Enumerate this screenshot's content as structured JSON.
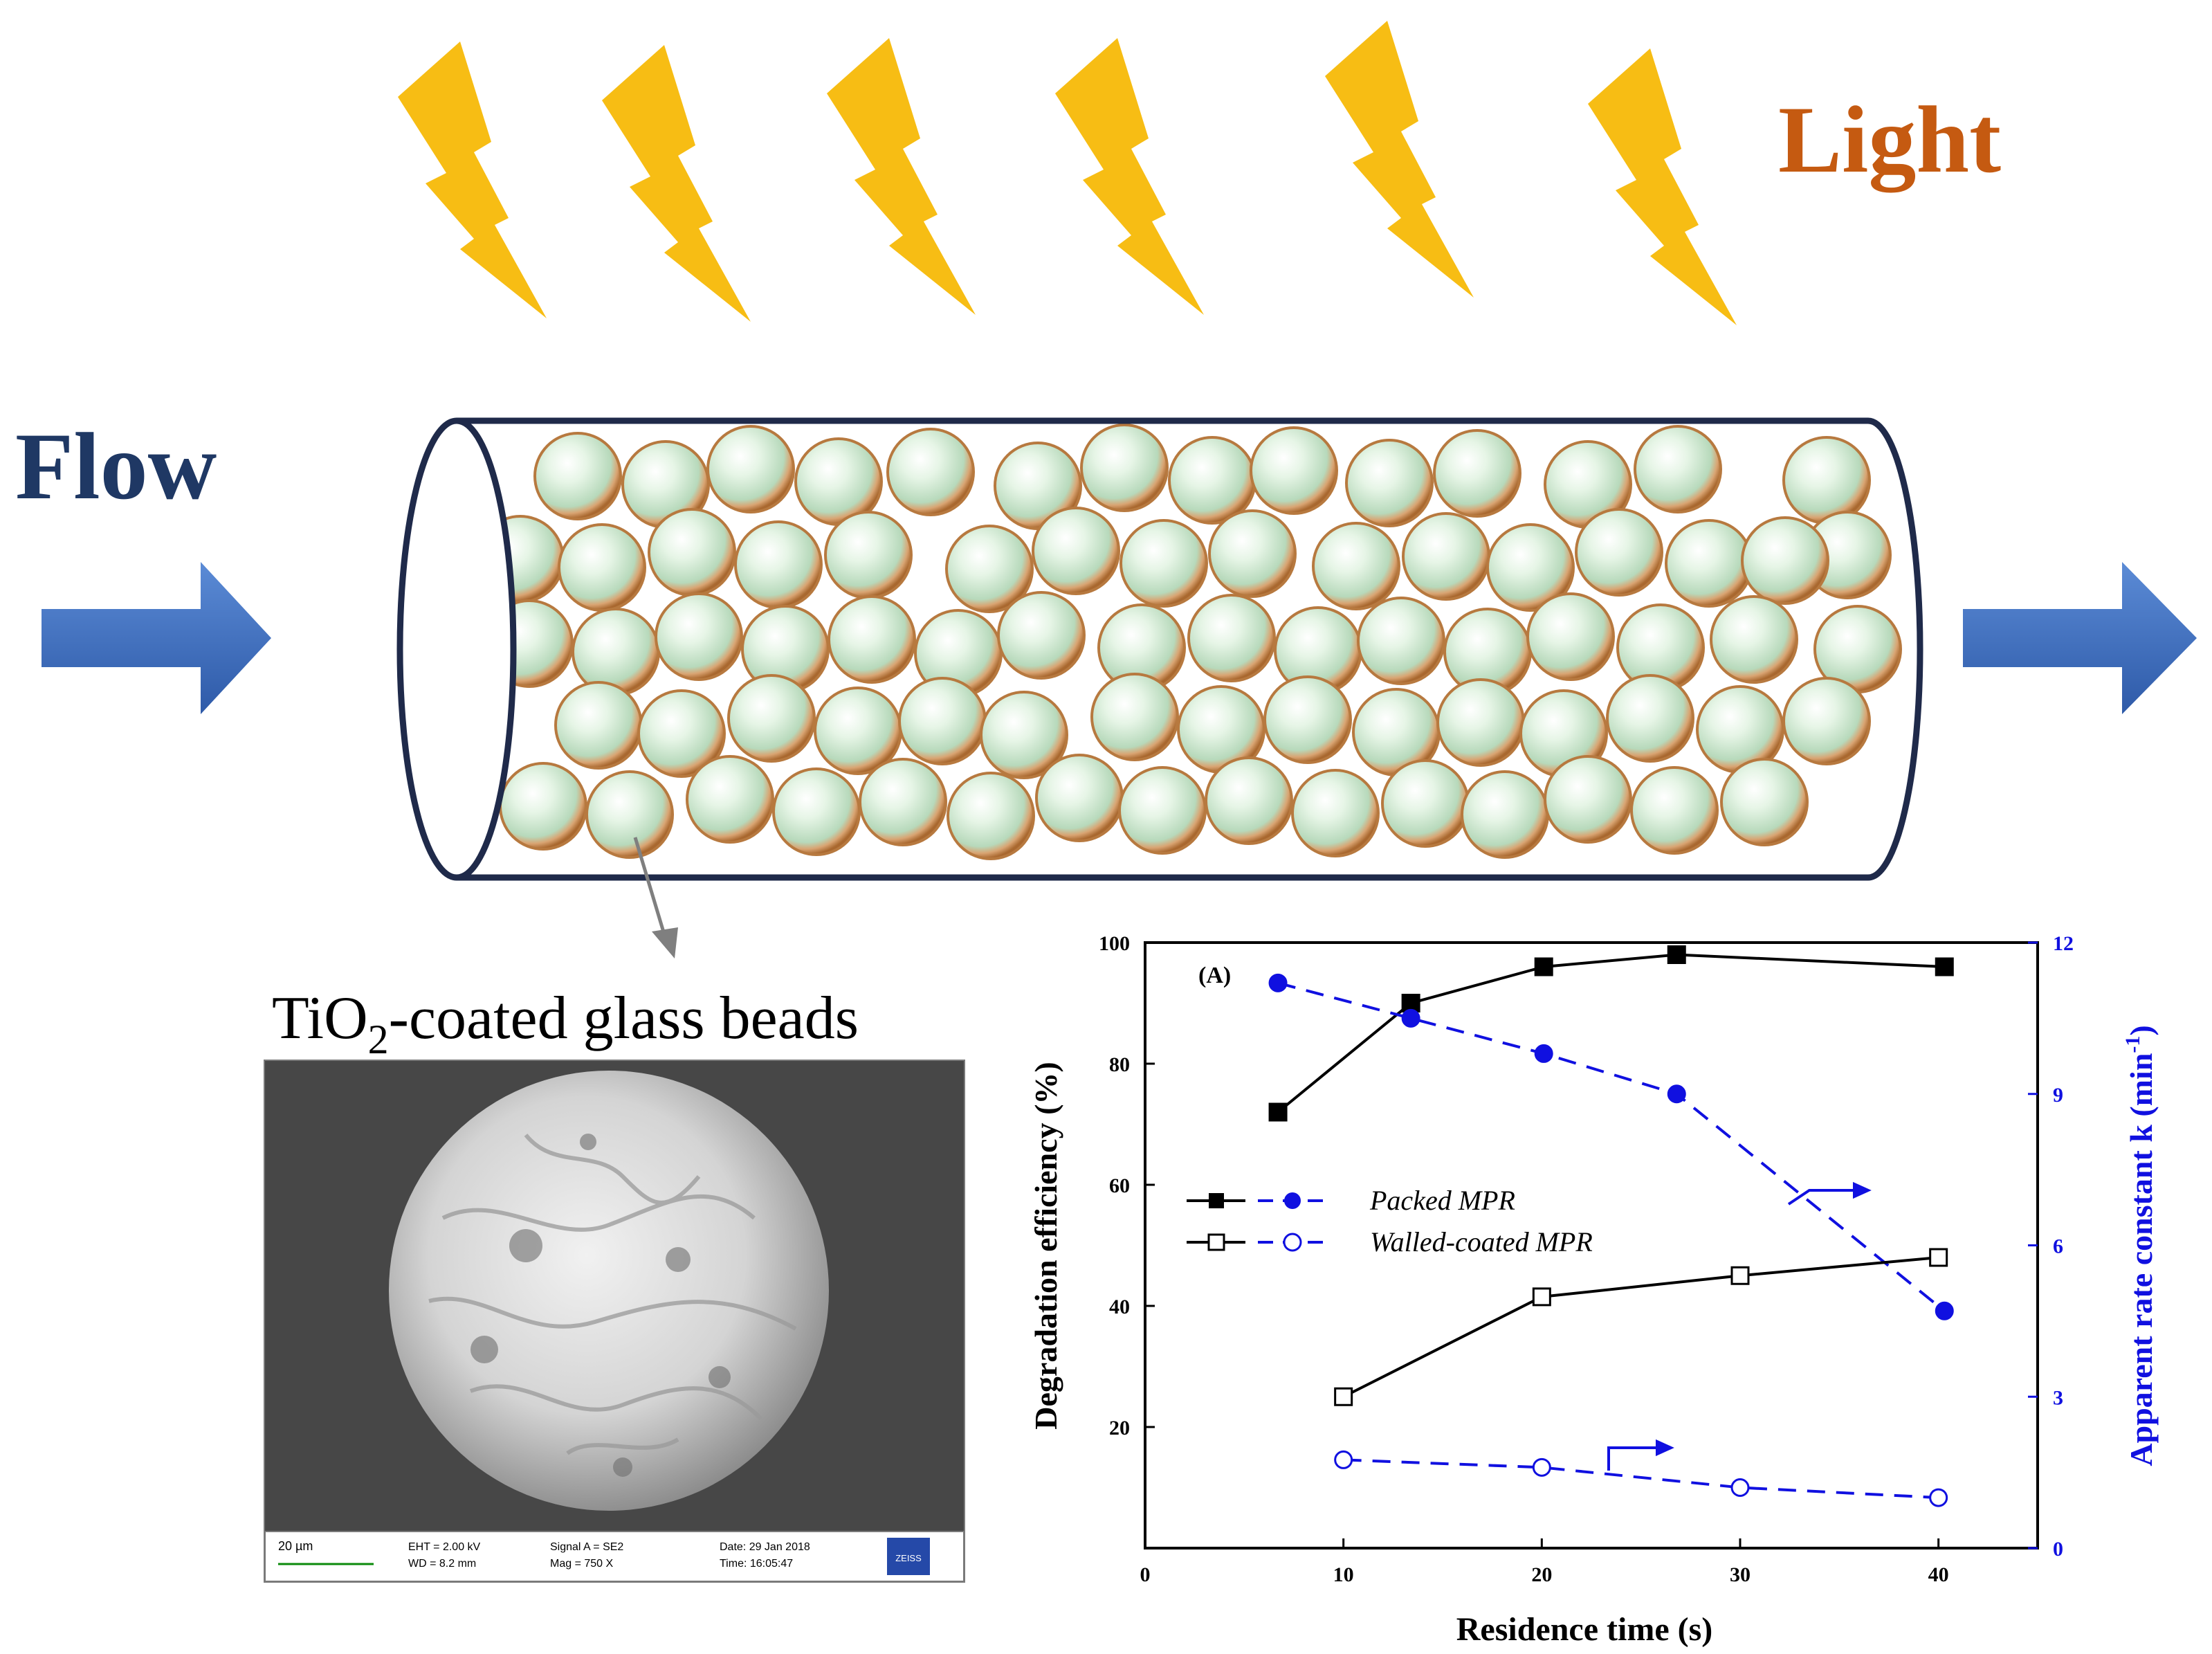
{
  "labels": {
    "light": "Light",
    "flow": "Flow",
    "bead_caption_main": "TiO",
    "bead_caption_sub": "2",
    "bead_caption_rest": "-coated glass beads"
  },
  "sem_footer": {
    "scale": "20 µm",
    "eht": "EHT = 2.00 kV",
    "wd": "WD = 8.2 mm",
    "signal": "Signal A = SE2",
    "mag": "Mag = 750 X",
    "date": "Date: 29 Jan 2018",
    "time": "Time: 16:05:47",
    "brand": "ZEISS"
  },
  "colors": {
    "bolt": "#f7bd14",
    "light_text": "#c55a11",
    "flow_text": "#1f3864",
    "arrow_blue": "#4472c4",
    "tube_stroke": "#1f2a4a",
    "bead_fill": "#d7eed8",
    "bead_rim": "#c98a4f",
    "series_black": "#000000",
    "series_blue": "#1010e0"
  },
  "chart_data": {
    "type": "line",
    "panel_label": "(A)",
    "xlabel": "Residence time (s)",
    "ylabel_left": "Degradation efficiency (%)",
    "ylabel_right": "Apparent rate constant k (min",
    "ylabel_right_sup": "-1",
    "ylabel_right_end": ")",
    "xlim": [
      0,
      45
    ],
    "ylim_left": [
      0,
      100
    ],
    "ylim_right": [
      0,
      12
    ],
    "xticks": [
      0,
      10,
      20,
      30,
      40
    ],
    "yticks_left": [
      20,
      40,
      60,
      80,
      100
    ],
    "yticks_right": [
      0,
      3,
      6,
      9,
      12
    ],
    "legend": [
      "Packed MPR",
      "Walled-coated MPR"
    ],
    "series": [
      {
        "name": "Packed MPR",
        "axis": "left",
        "style": "solid-filled-square",
        "x": [
          6.7,
          13.4,
          20.1,
          26.8,
          40.3
        ],
        "y": [
          72,
          90,
          96,
          98,
          96
        ]
      },
      {
        "name": "Packed MPR",
        "axis": "right",
        "style": "dashed-filled-circle",
        "x": [
          6.7,
          13.4,
          20.1,
          26.8,
          40.3
        ],
        "y": [
          11.2,
          10.5,
          9.8,
          9.0,
          4.7
        ]
      },
      {
        "name": "Walled-coated MPR",
        "axis": "left",
        "style": "solid-open-square",
        "x": [
          10,
          20,
          30,
          40
        ],
        "y": [
          25,
          41.5,
          45,
          48
        ]
      },
      {
        "name": "Walled-coated MPR",
        "axis": "right",
        "style": "dashed-open-circle",
        "x": [
          10,
          20,
          30,
          40
        ],
        "y": [
          1.75,
          1.6,
          1.2,
          1.0
        ]
      }
    ]
  }
}
